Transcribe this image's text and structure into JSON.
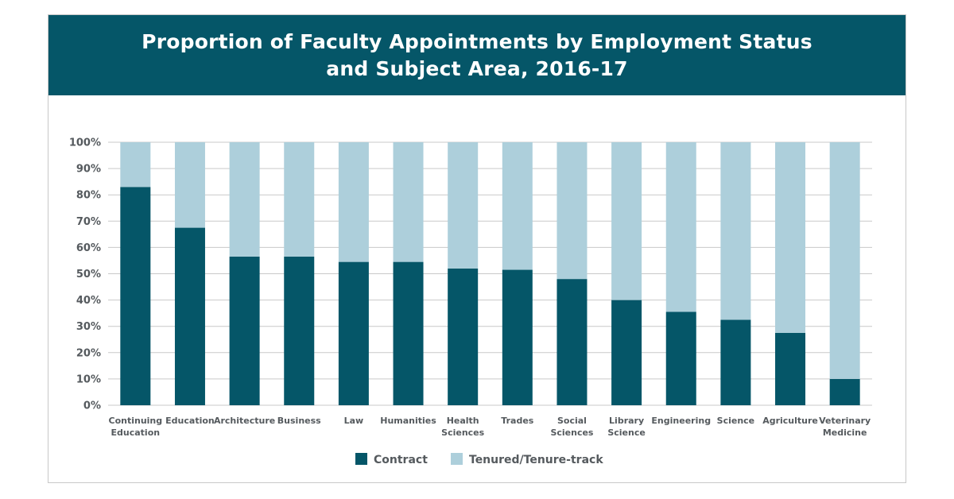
{
  "chart_data": {
    "type": "bar",
    "stacked": true,
    "title_lines": [
      "Proportion of Faculty Appointments by Employment Status",
      "and Subject Area, 2016-17"
    ],
    "categories": [
      [
        "Continuing",
        "Education"
      ],
      [
        "Education"
      ],
      [
        "Architecture"
      ],
      [
        "Business"
      ],
      [
        "Law"
      ],
      [
        "Humanities"
      ],
      [
        "Health",
        "Sciences"
      ],
      [
        "Trades"
      ],
      [
        "Social",
        "Sciences"
      ],
      [
        "Library",
        "Science"
      ],
      [
        "Engineering"
      ],
      [
        "Science"
      ],
      [
        "Agriculture"
      ],
      [
        "Veterinary",
        "Medicine"
      ]
    ],
    "series": [
      {
        "name": "Contract",
        "color": "#055668",
        "values": [
          83,
          67.5,
          56.5,
          56.5,
          54.5,
          54.5,
          52,
          51.5,
          48,
          40,
          35.5,
          32.5,
          27.5,
          10
        ]
      },
      {
        "name": "Tenured/Tenure-track",
        "color": "#adcfdb",
        "values": [
          17,
          32.5,
          43.5,
          43.5,
          45.5,
          45.5,
          48,
          48.5,
          52,
          60,
          64.5,
          67.5,
          72.5,
          90
        ]
      }
    ],
    "yticks": [
      "0%",
      "10%",
      "20%",
      "30%",
      "40%",
      "50%",
      "60%",
      "70%",
      "80%",
      "90%",
      "100%"
    ],
    "ylim": [
      0,
      100
    ],
    "grid": true,
    "legend_position": "bottom"
  }
}
